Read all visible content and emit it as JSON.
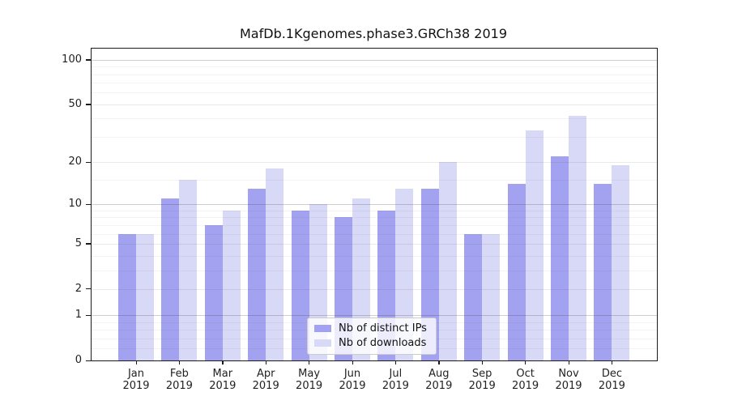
{
  "chart_data": {
    "type": "bar",
    "title": "MafDb.1Kgenomes.phase3.GRCh38 2019",
    "xlabel": "",
    "ylabel": "",
    "categories": [
      "Jan",
      "Feb",
      "Mar",
      "Apr",
      "May",
      "Jun",
      "Jul",
      "Aug",
      "Sep",
      "Oct",
      "Nov",
      "Dec"
    ],
    "x_year_sublabel": "2019",
    "series": [
      {
        "name": "Nb of distinct IPs",
        "color": "#a2a2f0",
        "values": [
          6,
          11,
          7,
          13,
          9,
          8,
          9,
          13,
          6,
          14,
          22,
          14
        ]
      },
      {
        "name": "Nb of downloads",
        "color": "#d8d8f7",
        "values": [
          6,
          15,
          9,
          18,
          10,
          11,
          13,
          20,
          6,
          33,
          42,
          19
        ]
      }
    ],
    "yscale": "log10(1+x)",
    "ylim": [
      0,
      119
    ],
    "y_ticks": [
      100,
      50,
      20,
      10,
      5,
      2,
      1,
      0
    ],
    "y_decade_gridlines": [
      1,
      10,
      100
    ],
    "y_mid_gridlines": [
      2,
      5,
      20,
      50
    ],
    "y_minor_gridlines": [
      0.2,
      0.4,
      0.6,
      0.8,
      3,
      4,
      6,
      7,
      8,
      9,
      15,
      30,
      40,
      60,
      70,
      80,
      90
    ],
    "grid": true,
    "legend": {
      "position": "lower center",
      "entries": [
        "Nb of distinct IPs",
        "Nb of downloads"
      ]
    }
  }
}
